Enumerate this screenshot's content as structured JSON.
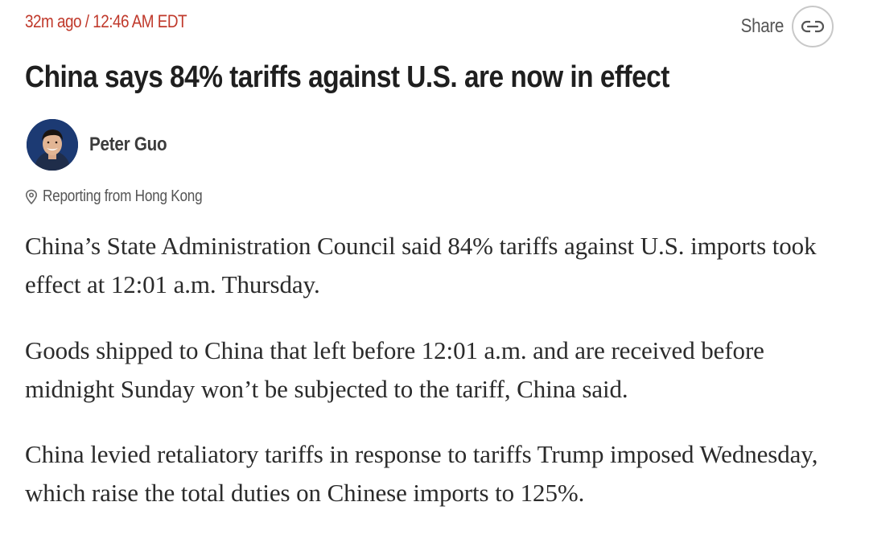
{
  "post": {
    "timestamp": "32m ago / 12:46 AM EDT",
    "share_label": "Share",
    "headline": "China says 84% tariffs against U.S. are now in effect",
    "author": "Peter Guo",
    "location": "Reporting from Hong Kong",
    "paragraphs": [
      "China’s State Administration Council said 84% tariffs against U.S. imports took effect at 12:01 a.m. Thursday.",
      "Goods shipped to China that left before 12:01 a.m. and are received before midnight Sunday won’t be subjected to the tariff, China said.",
      "China levied retaliatory tariffs in response to tariffs Trump imposed Wednesday, which raise the total duties on Chinese imports to 125%."
    ]
  },
  "colors": {
    "timestamp": "#c0392b",
    "text": "#2b2b2b",
    "headline": "#1f1f1f",
    "muted": "#555555",
    "avatar_bg": "#1c3a73"
  },
  "icons": {
    "share": "link-icon",
    "location": "location-pin-icon"
  }
}
